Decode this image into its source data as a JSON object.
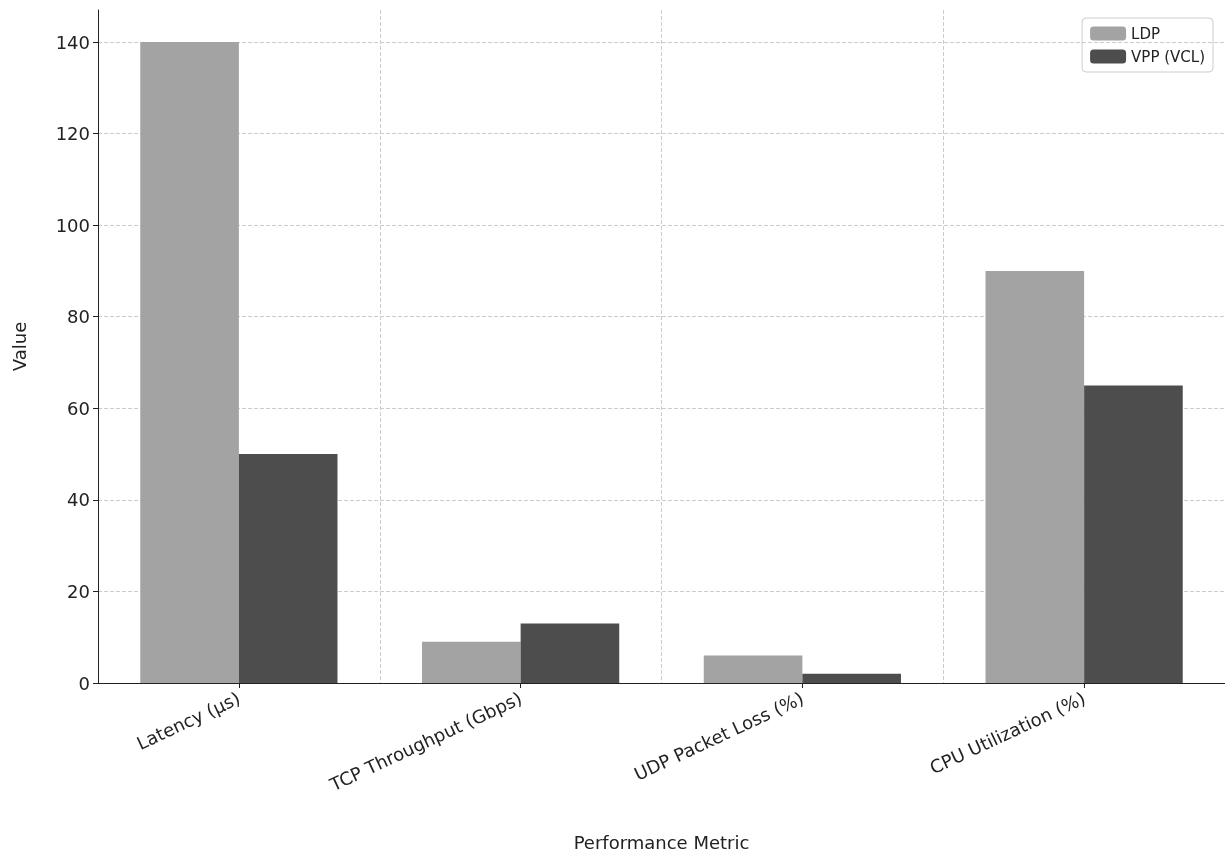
{
  "chart_data": {
    "type": "bar",
    "xlabel": "Performance Metric",
    "ylabel": "Value",
    "categories": [
      "Latency (µs)",
      "TCP Throughput (Gbps)",
      "UDP Packet Loss (%)",
      "CPU Utilization (%)"
    ],
    "series": [
      {
        "name": "LDP",
        "color": "#a3a3a3",
        "values": [
          140,
          9,
          6,
          90
        ]
      },
      {
        "name": "VPP (VCL)",
        "color": "#4d4d4d",
        "values": [
          50,
          13,
          2,
          65
        ]
      }
    ],
    "ylim": [
      0,
      147
    ],
    "yticks": [
      0,
      20,
      40,
      60,
      80,
      100,
      120,
      140
    ],
    "grid": true,
    "legend": "top right"
  }
}
